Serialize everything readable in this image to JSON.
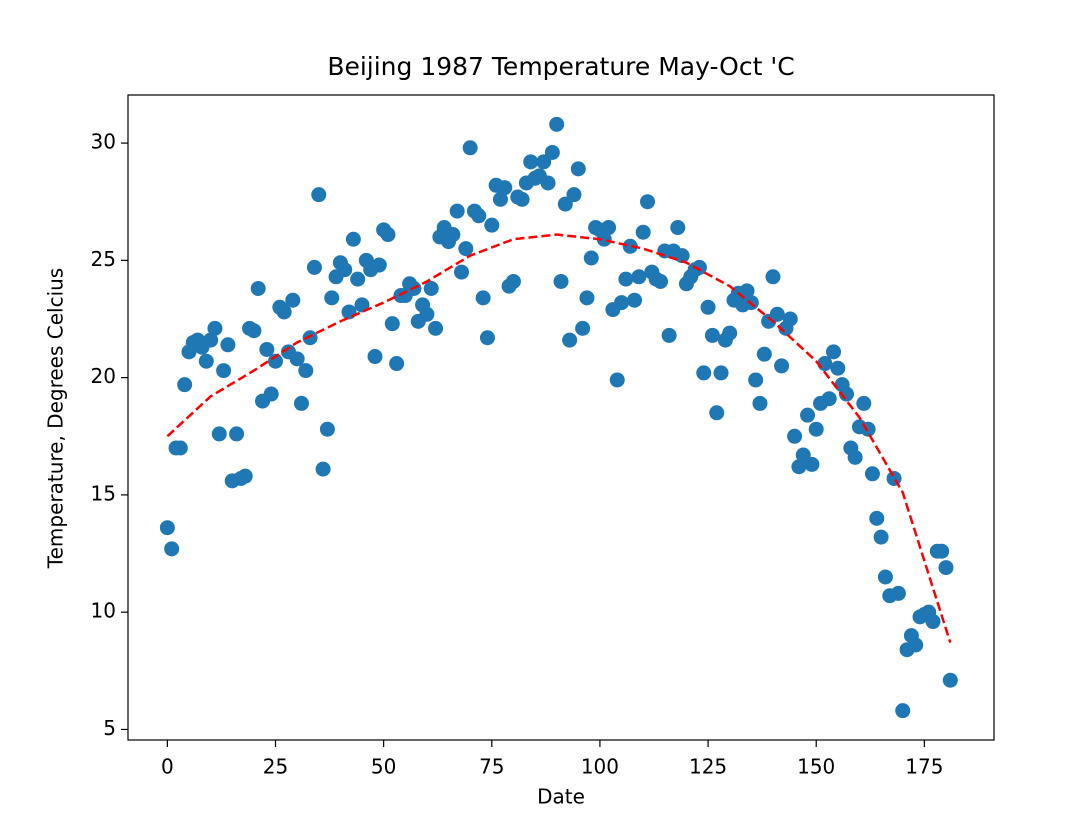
{
  "chart_data": {
    "type": "scatter",
    "title": "Beijing 1987 Temperature May-Oct 'C",
    "x_label": "Date",
    "y_label": "Temperature, Degrees Celcius",
    "color": "#1f77b4",
    "x": [
      0,
      1,
      2,
      3,
      4,
      5,
      6,
      7,
      8,
      9,
      10,
      11,
      12,
      13,
      14,
      15,
      16,
      17,
      18,
      19,
      20,
      21,
      22,
      23,
      24,
      25,
      26,
      27,
      28,
      29,
      30,
      31,
      32,
      33,
      34,
      35,
      36,
      37,
      38,
      39,
      40,
      41,
      42,
      43,
      44,
      45,
      46,
      47,
      48,
      49,
      50,
      51,
      52,
      53,
      54,
      55,
      56,
      57,
      58,
      59,
      60,
      61,
      62,
      63,
      64,
      65,
      66,
      67,
      68,
      69,
      70,
      71,
      72,
      73,
      74,
      75,
      76,
      77,
      78,
      79,
      80,
      81,
      82,
      83,
      84,
      85,
      86,
      87,
      88,
      89,
      90,
      91,
      92,
      93,
      94,
      95,
      96,
      97,
      98,
      99,
      100,
      101,
      102,
      103,
      104,
      105,
      106,
      107,
      108,
      109,
      110,
      111,
      112,
      113,
      114,
      115,
      116,
      117,
      118,
      119,
      120,
      121,
      122,
      123,
      124,
      125,
      126,
      127,
      128,
      129,
      130,
      131,
      132,
      133,
      134,
      135,
      136,
      137,
      138,
      139,
      140,
      141,
      142,
      143,
      144,
      145,
      146,
      147,
      148,
      149,
      150,
      151,
      152,
      153,
      154,
      155,
      156,
      157,
      158,
      159,
      160,
      161,
      162,
      163,
      164,
      165,
      166,
      167,
      168,
      169,
      170,
      171,
      172,
      173,
      174,
      175,
      176,
      177,
      178,
      179,
      180,
      181
    ],
    "values": [
      13.6,
      12.7,
      17.0,
      17.0,
      19.7,
      21.1,
      21.5,
      21.6,
      21.3,
      20.7,
      21.6,
      22.1,
      17.6,
      20.3,
      21.4,
      15.6,
      17.6,
      15.7,
      15.8,
      22.1,
      22.0,
      23.8,
      19.0,
      21.2,
      19.3,
      20.7,
      23.0,
      22.8,
      21.1,
      23.3,
      20.8,
      18.9,
      20.3,
      21.7,
      24.7,
      27.8,
      16.1,
      17.8,
      23.4,
      24.3,
      24.9,
      24.6,
      22.8,
      25.9,
      24.2,
      23.1,
      25.0,
      24.6,
      20.9,
      24.8,
      26.3,
      26.1,
      22.3,
      20.6,
      23.5,
      23.5,
      24.0,
      23.8,
      22.4,
      23.1,
      22.7,
      23.8,
      22.1,
      26.0,
      26.4,
      25.8,
      26.1,
      27.1,
      24.5,
      25.5,
      29.8,
      27.1,
      26.9,
      23.4,
      21.7,
      26.5,
      28.2,
      27.6,
      28.1,
      23.9,
      24.1,
      27.7,
      27.6,
      28.3,
      29.2,
      28.5,
      28.6,
      29.2,
      28.3,
      29.6,
      30.8,
      24.1,
      27.4,
      21.6,
      27.8,
      28.9,
      22.1,
      23.4,
      25.1,
      26.4,
      26.3,
      25.9,
      26.4,
      22.9,
      19.9,
      23.2,
      24.2,
      25.6,
      23.3,
      24.3,
      26.2,
      27.5,
      24.5,
      24.2,
      24.1,
      25.4,
      21.8,
      25.4,
      26.4,
      25.2,
      24.0,
      24.3,
      24.6,
      24.7,
      20.2,
      23.0,
      21.8,
      18.5,
      20.2,
      21.6,
      21.9,
      23.3,
      23.6,
      23.1,
      23.7,
      23.2,
      19.9,
      18.9,
      21.0,
      22.4,
      24.3,
      22.7,
      20.5,
      22.1,
      22.5,
      17.5,
      16.2,
      16.7,
      18.4,
      16.3,
      17.8,
      18.9,
      20.6,
      19.1,
      21.1,
      20.4,
      19.7,
      19.3,
      17.0,
      16.6,
      17.9,
      18.9,
      17.8,
      15.9,
      14.0,
      13.2,
      11.5,
      10.7,
      15.7,
      10.8,
      5.8,
      8.4,
      9.0,
      8.6,
      9.8,
      9.9,
      10.0,
      9.6,
      12.6,
      12.6,
      11.9,
      7.1
    ],
    "fit": {
      "color": "red",
      "linestyle": "dashed",
      "x": [
        0,
        10,
        20,
        30,
        40,
        50,
        60,
        70,
        80,
        90,
        100,
        110,
        120,
        130,
        140,
        150,
        160,
        170,
        181
      ],
      "values": [
        17.5,
        19.2,
        20.3,
        21.5,
        22.4,
        23.2,
        24.1,
        25.2,
        25.9,
        26.1,
        25.9,
        25.5,
        24.9,
        23.9,
        22.4,
        20.7,
        18.3,
        15.1,
        8.7
      ]
    },
    "xlim": [
      -9.1,
      191.1
    ],
    "ylim": [
      4.55,
      32.05
    ],
    "xticks": [
      0,
      25,
      50,
      75,
      100,
      125,
      150,
      175
    ],
    "yticks": [
      5,
      10,
      15,
      20,
      25,
      30
    ]
  }
}
